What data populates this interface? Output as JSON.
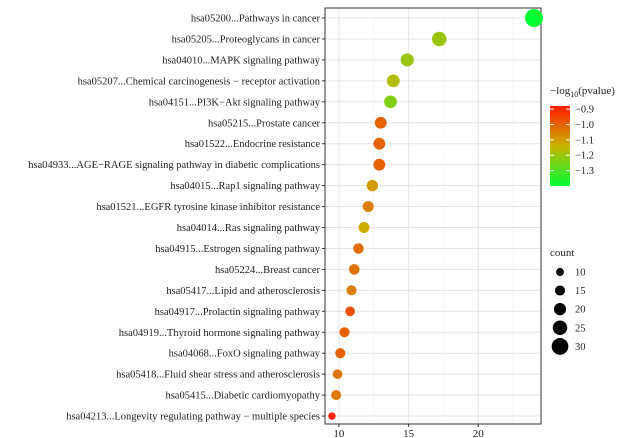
{
  "chart_data": {
    "type": "scatter",
    "subtype": "dot-plot",
    "categories": [
      "hsa05200...Pathways in cancer",
      "hsa05205...Proteoglycans in cancer",
      "hsa04010...MAPK signaling pathway",
      "hsa05207...Chemical carcinogenesis − receptor activation",
      "hsa04151...PI3K−Akt signaling pathway",
      "hsa05215...Prostate cancer",
      "hsa01522...Endocrine resistance",
      "hsa04933...AGE−RAGE signaling pathway in diabetic complications",
      "hsa04015...Rap1 signaling pathway",
      "hsa01521...EGFR tyrosine kinase inhibitor resistance",
      "hsa04014...Ras signaling pathway",
      "hsa04915...Estrogen signaling pathway",
      "hsa05224...Breast cancer",
      "hsa05417...Lipid and atherosclerosis",
      "hsa04917...Prolactin signaling pathway",
      "hsa04919...Thyroid hormone signaling pathway",
      "hsa04068...FoxO signaling pathway",
      "hsa05418...Fluid shear stress and atherosclerosis",
      "hsa05415...Diabetic cardiomyopathy",
      "hsa04213...Longevity regulating pathway − multiple species"
    ],
    "x": [
      24,
      17.2,
      14.9,
      13.9,
      13.7,
      13.0,
      12.9,
      12.9,
      12.4,
      12.1,
      11.8,
      11.4,
      11.1,
      10.9,
      10.8,
      10.4,
      10.1,
      9.9,
      9.8,
      9.5
    ],
    "size_values": [
      33,
      25,
      22,
      21,
      21,
      19,
      19,
      19,
      18,
      17,
      17,
      16,
      16,
      15,
      14,
      15,
      15,
      14,
      15,
      9
    ],
    "color_values": [
      -1.4,
      -1.2,
      -1.2,
      -1.17,
      -1.23,
      -1.0,
      -1.0,
      -1.0,
      -1.1,
      -1.05,
      -1.13,
      -1.02,
      -1.03,
      -1.05,
      -0.97,
      -1.0,
      -1.0,
      -1.03,
      -1.04,
      -0.9
    ],
    "xlim": [
      9,
      24.5
    ],
    "xticks": [
      10,
      15,
      20
    ],
    "xlabel": "",
    "ylabel": "",
    "grid": true,
    "color_legend": {
      "title_prefix": "−log",
      "title_sub": "10",
      "title_suffix": "(pvalue)",
      "ticks": [
        -0.9,
        -1.0,
        -1.1,
        -1.2,
        -1.3
      ],
      "tick_labels": [
        "−0.9",
        "−1.0",
        "−1.1",
        "−1.2",
        "−1.3"
      ],
      "range": [
        -1.4,
        -0.88
      ],
      "low_color": "#00ff33",
      "mid_color": "#c8b400",
      "high_color": "#ff1a00"
    },
    "size_legend": {
      "title": "count",
      "values": [
        10,
        15,
        20,
        25,
        30
      ],
      "labels": [
        "10",
        "15",
        "20",
        "25",
        "30"
      ]
    },
    "size_range": [
      8,
      33
    ]
  }
}
